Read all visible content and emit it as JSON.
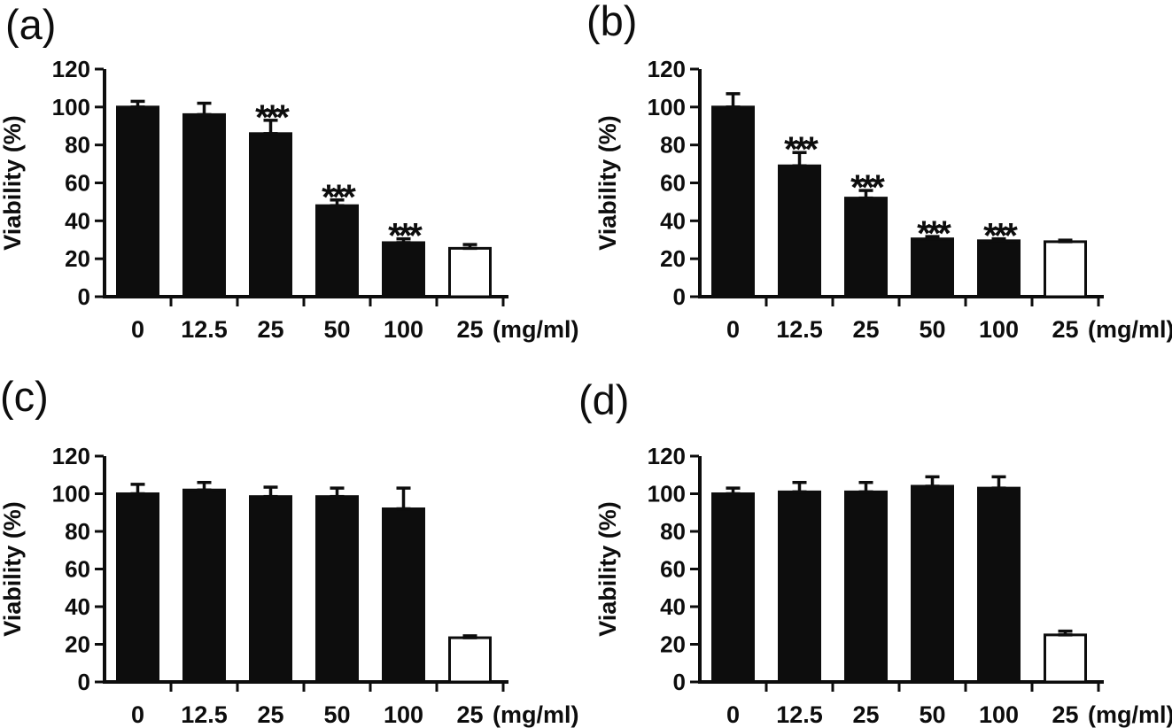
{
  "figure": {
    "background_color": "#ffffff",
    "ink_color": "#0d0d0d",
    "description": "Four-panel bar chart figure of cell viability (%) versus concentration (mg/ml); five filled bars per panel plus one open (white) control bar at 25 mg/ml; error bars on every bar; *** significance markers on some bars"
  },
  "chart_data": [
    {
      "panel_label": "(a)",
      "type": "bar",
      "title": "",
      "xlabel": "",
      "ylabel": "Viability (%)",
      "x_unit_suffix": "(mg/ml)",
      "categories": [
        "0",
        "12.5",
        "25",
        "50",
        "100",
        "25"
      ],
      "values": [
        100,
        96,
        86,
        48,
        28.5,
        25.5
      ],
      "errors": [
        3,
        6,
        7,
        3,
        2,
        2
      ],
      "significance": [
        "",
        "",
        "***",
        "***",
        "***",
        ""
      ],
      "bar_fills": [
        "#0d0d0d",
        "#0d0d0d",
        "#0d0d0d",
        "#0d0d0d",
        "#0d0d0d",
        "#ffffff"
      ],
      "ylim": [
        0,
        120
      ],
      "yticks": [
        0,
        20,
        40,
        60,
        80,
        100,
        120
      ],
      "grid": false,
      "legend": "none",
      "error_bars": true
    },
    {
      "panel_label": "(b)",
      "type": "bar",
      "title": "",
      "xlabel": "",
      "ylabel": "Viability (%)",
      "x_unit_suffix": "(mg/ml)",
      "categories": [
        "0",
        "12.5",
        "25",
        "50",
        "100",
        "25"
      ],
      "values": [
        100,
        69,
        52,
        30.5,
        29.5,
        29
      ],
      "errors": [
        7,
        7,
        4,
        1.2,
        1,
        0.8
      ],
      "significance": [
        "",
        "***",
        "***",
        "***",
        "***",
        ""
      ],
      "bar_fills": [
        "#0d0d0d",
        "#0d0d0d",
        "#0d0d0d",
        "#0d0d0d",
        "#0d0d0d",
        "#ffffff"
      ],
      "ylim": [
        0,
        120
      ],
      "yticks": [
        0,
        20,
        40,
        60,
        80,
        100,
        120
      ],
      "grid": false,
      "legend": "none",
      "error_bars": true
    },
    {
      "panel_label": "(c)",
      "type": "bar",
      "title": "",
      "xlabel": "",
      "ylabel": "Viability (%)",
      "x_unit_suffix": "(mg/ml)",
      "categories": [
        "0",
        "12.5",
        "25",
        "50",
        "100",
        "25"
      ],
      "values": [
        100,
        102,
        98.5,
        98.5,
        92,
        23.5
      ],
      "errors": [
        5,
        4,
        5,
        4.5,
        11,
        1
      ],
      "significance": [
        "",
        "",
        "",
        "",
        "",
        ""
      ],
      "bar_fills": [
        "#0d0d0d",
        "#0d0d0d",
        "#0d0d0d",
        "#0d0d0d",
        "#0d0d0d",
        "#ffffff"
      ],
      "ylim": [
        0,
        120
      ],
      "yticks": [
        0,
        20,
        40,
        60,
        80,
        100,
        120
      ],
      "grid": false,
      "legend": "none",
      "error_bars": true
    },
    {
      "panel_label": "(d)",
      "type": "bar",
      "title": "",
      "xlabel": "",
      "ylabel": "Viability (%)",
      "x_unit_suffix": "(mg/ml)",
      "categories": [
        "0",
        "12.5",
        "25",
        "50",
        "100",
        "25"
      ],
      "values": [
        100,
        101,
        101,
        104,
        103,
        25
      ],
      "errors": [
        3,
        5,
        5,
        5,
        6,
        2
      ],
      "significance": [
        "",
        "",
        "",
        "",
        "",
        ""
      ],
      "bar_fills": [
        "#0d0d0d",
        "#0d0d0d",
        "#0d0d0d",
        "#0d0d0d",
        "#0d0d0d",
        "#ffffff"
      ],
      "ylim": [
        0,
        120
      ],
      "yticks": [
        0,
        20,
        40,
        60,
        80,
        100,
        120
      ],
      "grid": false,
      "legend": "none",
      "error_bars": true
    }
  ]
}
